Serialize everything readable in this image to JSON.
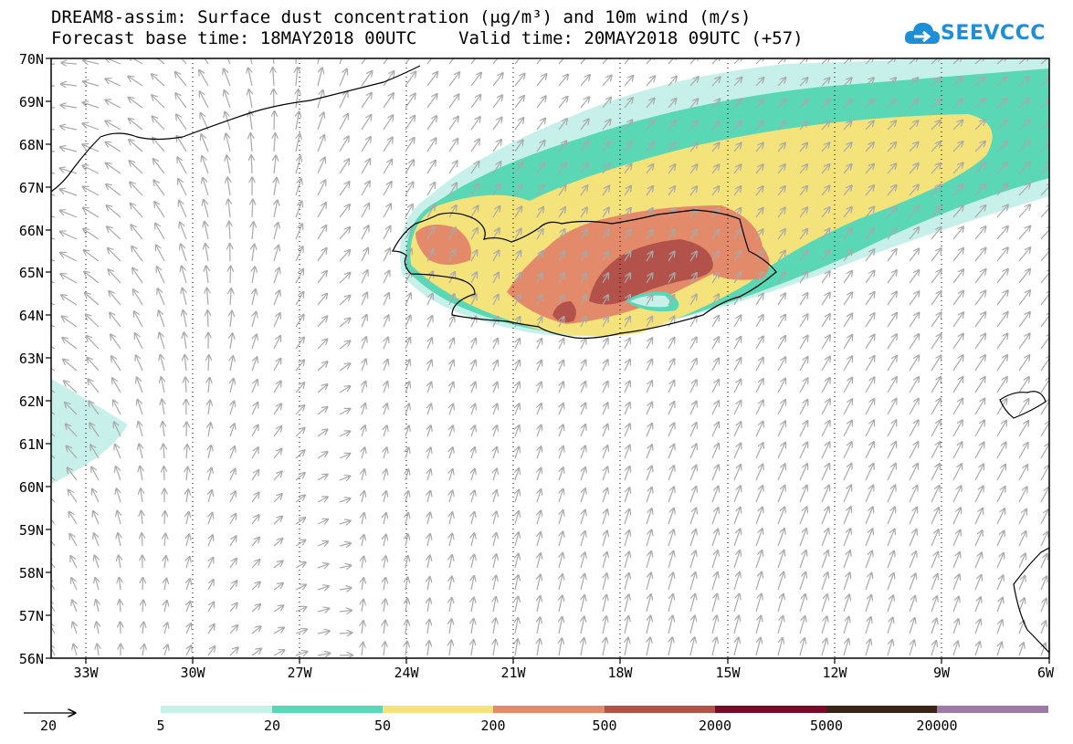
{
  "title": {
    "line1": "DREAM8-assim: Surface dust concentration (μg/m³) and 10m wind (m/s)",
    "line2": "Forecast base time: 18MAY2018 00UTC    Valid time: 20MAY2018 09UTC (+57)"
  },
  "logo": {
    "text": "SEEVCCC",
    "icon": "cloud-icon",
    "color": "#1e8fd6"
  },
  "map": {
    "lat_labels": [
      "70N",
      "69N",
      "68N",
      "67N",
      "66N",
      "65N",
      "64N",
      "63N",
      "62N",
      "61N",
      "60N",
      "59N",
      "58N",
      "57N",
      "56N"
    ],
    "lon_labels": [
      "33W",
      "30W",
      "27W",
      "24W",
      "21W",
      "18W",
      "15W",
      "12W",
      "9W",
      "6W"
    ],
    "wind_arrow_color": "#a9a9a9",
    "coastline_color": "#000000"
  },
  "legend": {
    "reference_arrow_label": "20",
    "colors": [
      "#c8f0ea",
      "#5ad8b6",
      "#f4e27a",
      "#e38a6a",
      "#b3524a",
      "#7a0a2a",
      "#3a2418",
      "#9c7aa6"
    ],
    "ticks": [
      "5",
      "20",
      "50",
      "200",
      "500",
      "2000",
      "5000",
      "20000"
    ]
  }
}
